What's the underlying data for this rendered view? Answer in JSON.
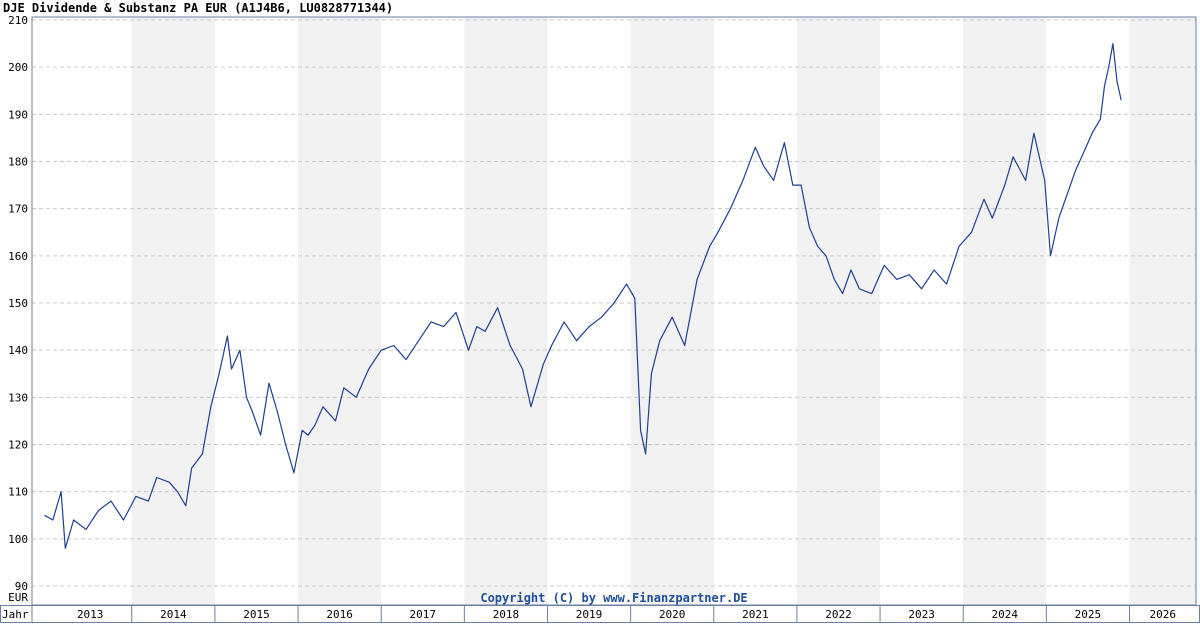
{
  "chart_data": {
    "type": "line",
    "title": "DJE Dividende & Substanz PA EUR (A1J4B6, LU0828771344)",
    "ylabel": "EUR",
    "xlabel": "Jahr",
    "copyright": "Copyright (C) by www.Finanzpartner.DE",
    "ylim": [
      90,
      210
    ],
    "xlim": [
      2012.8,
      2026.8
    ],
    "y_ticks": [
      90,
      100,
      110,
      120,
      130,
      140,
      150,
      160,
      170,
      180,
      190,
      200,
      210
    ],
    "x_ticks": [
      "2013",
      "2014",
      "2015",
      "2016",
      "2017",
      "2018",
      "2019",
      "2020",
      "2021",
      "2022",
      "2023",
      "2024",
      "2025",
      "2026"
    ],
    "grid": true,
    "line_color": "#1f3f8f",
    "series": [
      {
        "x": [
          2012.95,
          2013.05,
          2013.15,
          2013.2,
          2013.3,
          2013.45,
          2013.6,
          2013.75,
          2013.9,
          2014.05,
          2014.2,
          2014.3,
          2014.45,
          2014.55,
          2014.65,
          2014.72,
          2014.85,
          2014.95,
          2015.05,
          2015.15,
          2015.2,
          2015.3,
          2015.38,
          2015.45,
          2015.55,
          2015.65,
          2015.75,
          2015.85,
          2015.95,
          2016.05,
          2016.12,
          2016.2,
          2016.3,
          2016.45,
          2016.55,
          2016.7,
          2016.85,
          2017.0,
          2017.15,
          2017.3,
          2017.45,
          2017.6,
          2017.75,
          2017.9,
          2018.05,
          2018.15,
          2018.25,
          2018.4,
          2018.55,
          2018.7,
          2018.8,
          2018.95,
          2019.05,
          2019.2,
          2019.35,
          2019.5,
          2019.65,
          2019.8,
          2019.95,
          2020.05,
          2020.12,
          2020.18,
          2020.25,
          2020.35,
          2020.5,
          2020.65,
          2020.8,
          2020.95,
          2021.05,
          2021.2,
          2021.35,
          2021.5,
          2021.6,
          2021.72,
          2021.85,
          2021.95,
          2022.05,
          2022.15,
          2022.25,
          2022.35,
          2022.45,
          2022.55,
          2022.65,
          2022.75,
          2022.9,
          2023.05,
          2023.2,
          2023.35,
          2023.5,
          2023.65,
          2023.8,
          2023.95,
          2024.1,
          2024.25,
          2024.35,
          2024.5,
          2024.6,
          2024.75,
          2024.85,
          2024.98,
          2025.05,
          2025.15,
          2025.25,
          2025.35,
          2025.45,
          2025.55,
          2025.65,
          2025.7,
          2025.75,
          2025.8,
          2025.85,
          2025.9
        ],
        "y": [
          105,
          104,
          110,
          98,
          104,
          102,
          106,
          108,
          104,
          109,
          108,
          113,
          112,
          110,
          107,
          115,
          118,
          128,
          135,
          143,
          136,
          140,
          130,
          127,
          122,
          133,
          127,
          120,
          114,
          123,
          122,
          124,
          128,
          125,
          132,
          130,
          136,
          140,
          141,
          138,
          142,
          146,
          145,
          148,
          140,
          145,
          144,
          149,
          141,
          136,
          128,
          137,
          141,
          146,
          142,
          145,
          147,
          150,
          154,
          151,
          123,
          118,
          135,
          142,
          147,
          141,
          155,
          162,
          165,
          170,
          176,
          183,
          179,
          176,
          184,
          175,
          175,
          166,
          162,
          160,
          155,
          152,
          157,
          153,
          152,
          158,
          155,
          156,
          153,
          157,
          154,
          162,
          165,
          172,
          168,
          175,
          181,
          176,
          186,
          176,
          160,
          168,
          173,
          178,
          182,
          186,
          189,
          196,
          200,
          205,
          197,
          193
        ]
      }
    ]
  }
}
